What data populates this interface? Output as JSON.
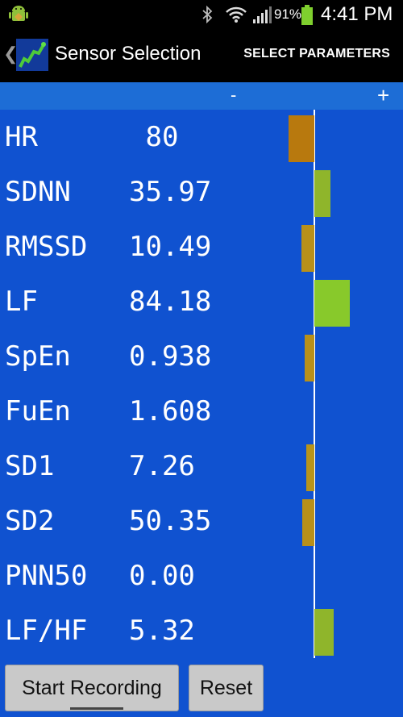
{
  "status_bar": {
    "battery_percent": "91%",
    "time": "4:41 PM",
    "icons": [
      "android-debug-icon",
      "bluetooth-icon",
      "wifi-icon",
      "signal-icon",
      "battery-icon"
    ]
  },
  "action_bar": {
    "title": "Sensor Selection",
    "action_label": "SELECT PARAMETERS",
    "back_glyph": "❮"
  },
  "zoom": {
    "minus": "-",
    "plus": "+"
  },
  "rows": [
    {
      "name": "HR",
      "value": " 80",
      "bar_value": -32,
      "color": "#b8790e"
    },
    {
      "name": "SDNN",
      "value": "35.97",
      "bar_value": 20,
      "color": "#8fb52b"
    },
    {
      "name": "RMSSD",
      "value": "10.49",
      "bar_value": -16,
      "color": "#b8901a"
    },
    {
      "name": "LF",
      "value": "84.18",
      "bar_value": 44,
      "color": "#88c92b"
    },
    {
      "name": "SpEn",
      "value": "0.938",
      "bar_value": -12,
      "color": "#b8901a"
    },
    {
      "name": "FuEn",
      "value": "1.608",
      "bar_value": 0,
      "color": "#b8901a"
    },
    {
      "name": "SD1",
      "value": "7.26",
      "bar_value": -10,
      "color": "#b8941a"
    },
    {
      "name": "SD2",
      "value": "50.35",
      "bar_value": -15,
      "color": "#b8901a"
    },
    {
      "name": "PNN50",
      "value": "0.00",
      "bar_value": 0,
      "color": "#b8901a"
    },
    {
      "name": "LF/HF",
      "value": "5.32",
      "bar_value": 24,
      "color": "#8fb52b"
    }
  ],
  "buttons": {
    "start_label": "Start Recording",
    "reset_label": "Reset"
  },
  "colors": {
    "background_blue": "#1052d0",
    "strip_blue": "#1d6dd6",
    "negative_bar": "#b8790e",
    "positive_bar": "#88c92b"
  }
}
